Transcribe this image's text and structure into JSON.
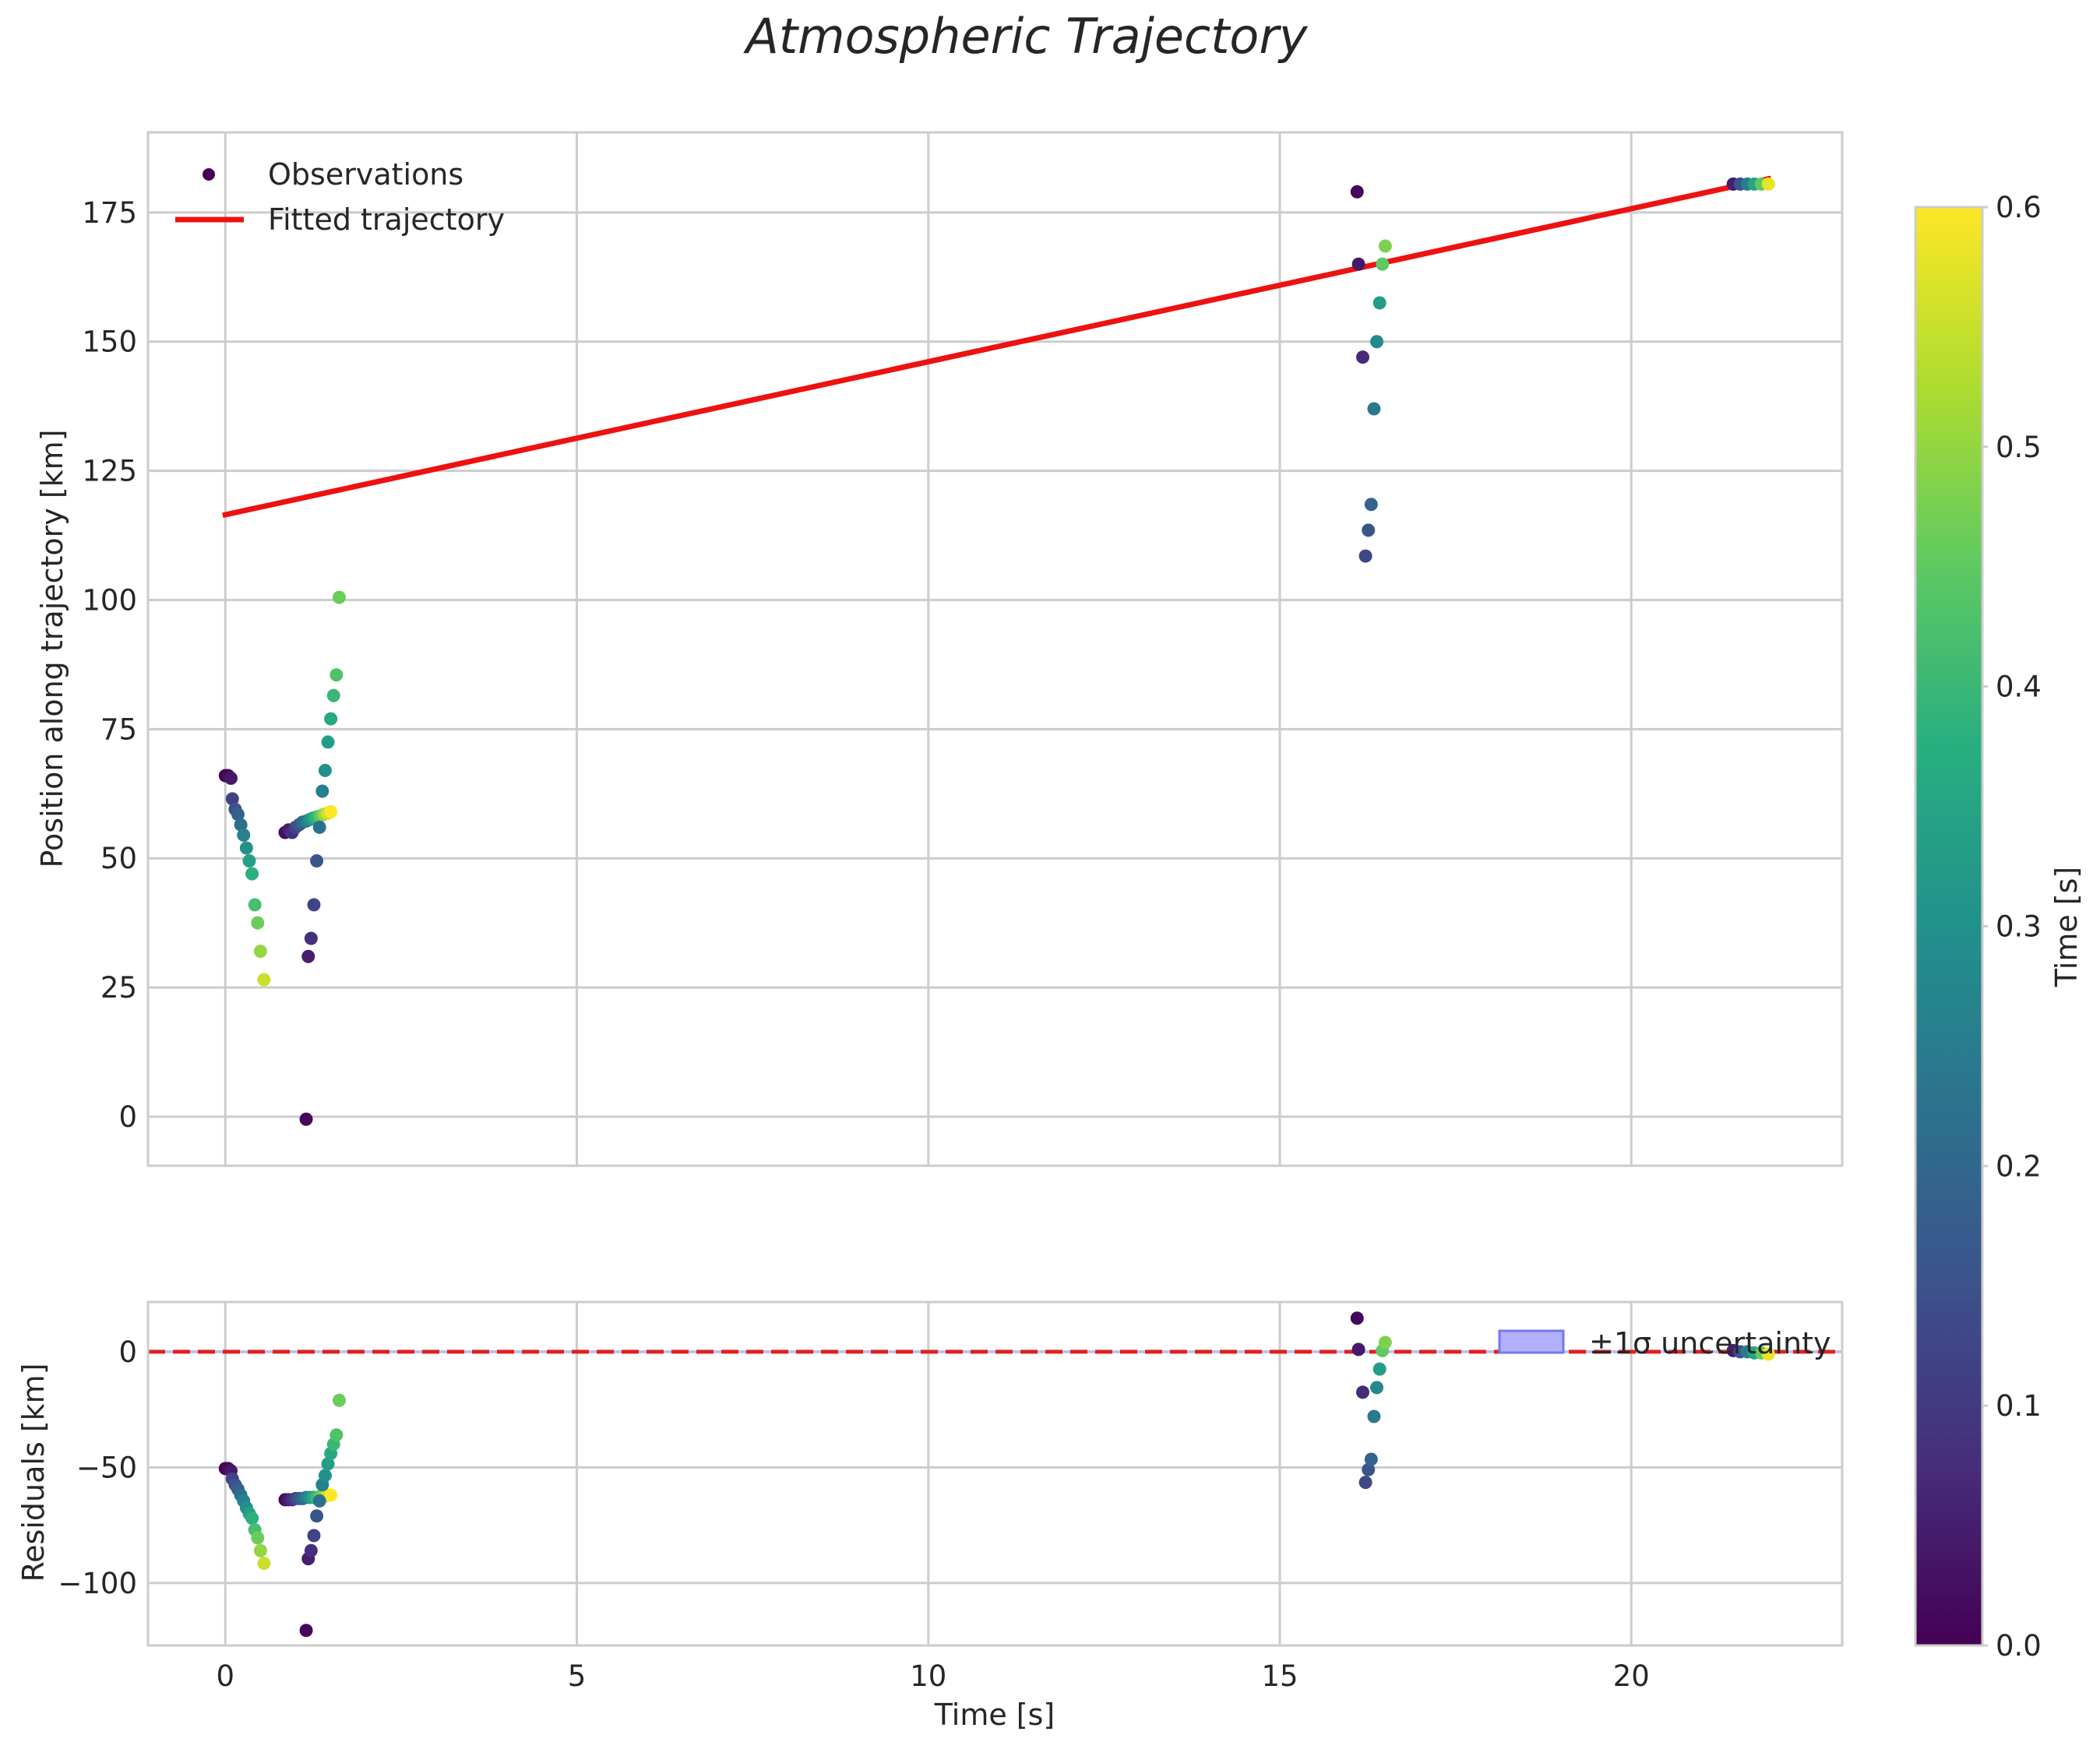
{
  "figure_title": "Atmospheric Trajectory",
  "colors": {
    "fit_line": "#ee1111",
    "zero_line": "#dd2222",
    "band_fill": "#b0b0ff",
    "band_edge": "#7777ee",
    "grid": "#cccccc",
    "viridis": [
      "#440154",
      "#472d7b",
      "#3b528b",
      "#2c728e",
      "#21918c",
      "#28ae80",
      "#5ec962",
      "#addc30",
      "#fde725"
    ]
  },
  "chart_data": [
    {
      "type": "scatter",
      "panel": "top",
      "title": "Atmospheric Trajectory",
      "xlabel": "",
      "ylabel": "Position along trajectory [km]",
      "xlim": [
        -1.1,
        23.0
      ],
      "ylim": [
        -9.5,
        190.5
      ],
      "xticks": [
        "0",
        "5",
        "10",
        "15",
        "20"
      ],
      "yticks": [
        "0",
        "25",
        "50",
        "75",
        "100",
        "125",
        "150",
        "175"
      ],
      "grid": true,
      "legend": {
        "location": "top-left",
        "entries": [
          "Observations",
          "Fitted trajectory"
        ]
      },
      "fit_line": {
        "name": "Fitted trajectory",
        "x": [
          0.0,
          21.95
        ],
        "y": [
          116.5,
          181.5
        ]
      },
      "series": [
        {
          "name": "Observations",
          "x": [
            0.0,
            0.04,
            0.08,
            0.1,
            0.14,
            0.18,
            0.22,
            0.26,
            0.3,
            0.34,
            0.38,
            0.42,
            0.46,
            0.5,
            0.55,
            0.85,
            0.9,
            0.95,
            1.0,
            1.05,
            1.1,
            1.15,
            1.2,
            1.25,
            1.3,
            1.35,
            1.4,
            1.45,
            1.5,
            1.15,
            1.18,
            1.22,
            1.26,
            1.3,
            1.34,
            1.38,
            1.42,
            1.46,
            1.5,
            1.54,
            1.58,
            1.62,
            16.1,
            16.12,
            16.18,
            16.22,
            16.26,
            16.3,
            16.34,
            16.38,
            16.42,
            16.46,
            16.5,
            21.45,
            21.55,
            21.65,
            21.75,
            21.85,
            21.95
          ],
          "y": [
            66.0,
            66.0,
            65.5,
            61.5,
            59.5,
            58.5,
            56.5,
            54.5,
            52.0,
            49.5,
            47.0,
            41.0,
            37.5,
            32.0,
            26.5,
            55.0,
            55.5,
            55.0,
            56.0,
            56.5,
            57.0,
            57.2,
            57.5,
            57.8,
            58.0,
            58.2,
            58.5,
            58.7,
            59.0,
            -0.5,
            31.0,
            34.5,
            41.0,
            49.5,
            56.0,
            63.0,
            67.0,
            72.5,
            77.0,
            81.5,
            85.5,
            100.5,
            179.0,
            165.0,
            147.0,
            108.5,
            113.5,
            118.5,
            137.0,
            150.0,
            157.5,
            165.0,
            168.5,
            180.5,
            180.5,
            180.5,
            180.5,
            180.5,
            180.5
          ],
          "time": [
            0.0,
            0.01,
            0.04,
            0.12,
            0.15,
            0.18,
            0.22,
            0.26,
            0.3,
            0.34,
            0.38,
            0.42,
            0.46,
            0.5,
            0.55,
            0.02,
            0.05,
            0.08,
            0.12,
            0.16,
            0.2,
            0.25,
            0.3,
            0.35,
            0.4,
            0.45,
            0.5,
            0.55,
            0.6,
            0.01,
            0.05,
            0.08,
            0.12,
            0.16,
            0.22,
            0.26,
            0.3,
            0.33,
            0.36,
            0.4,
            0.43,
            0.46,
            0.01,
            0.04,
            0.07,
            0.13,
            0.16,
            0.19,
            0.24,
            0.28,
            0.33,
            0.45,
            0.48,
            0.05,
            0.15,
            0.25,
            0.35,
            0.45,
            0.58
          ]
        }
      ]
    },
    {
      "type": "scatter",
      "panel": "bottom",
      "title": "",
      "xlabel": "Time [s]",
      "ylabel": "Residuals [km]",
      "xlim": [
        -1.1,
        23.0
      ],
      "ylim": [
        -127.0,
        21.5
      ],
      "xticks": [
        "0",
        "5",
        "10",
        "15",
        "20"
      ],
      "yticks": [
        "0",
        "−50",
        "−100"
      ],
      "grid": true,
      "zero_line": 0,
      "legend": {
        "location": "top-right",
        "entries": [
          "±1σ uncertainty"
        ]
      },
      "series": [
        {
          "name": "Residuals",
          "x": [
            0.0,
            0.04,
            0.08,
            0.1,
            0.14,
            0.18,
            0.22,
            0.26,
            0.3,
            0.34,
            0.38,
            0.42,
            0.46,
            0.5,
            0.55,
            0.85,
            0.9,
            0.95,
            1.0,
            1.05,
            1.1,
            1.15,
            1.2,
            1.25,
            1.3,
            1.35,
            1.4,
            1.45,
            1.5,
            1.15,
            1.18,
            1.22,
            1.26,
            1.3,
            1.34,
            1.38,
            1.42,
            1.46,
            1.5,
            1.54,
            1.58,
            1.62,
            16.1,
            16.12,
            16.18,
            16.22,
            16.26,
            16.3,
            16.34,
            16.38,
            16.42,
            16.46,
            16.5,
            21.45,
            21.55,
            21.65,
            21.75,
            21.85,
            21.95
          ],
          "y": [
            -50.5,
            -50.5,
            -51.5,
            -55.0,
            -57.5,
            -59.5,
            -62.0,
            -64.5,
            -67.5,
            -70.0,
            -72.0,
            -77.0,
            -80.5,
            -86.0,
            -91.5,
            -64.0,
            -64.0,
            -64.0,
            -63.5,
            -63.5,
            -63.5,
            -63.0,
            -63.0,
            -63.0,
            -63.0,
            -62.5,
            -62.5,
            -62.0,
            -62.0,
            -120.5,
            -89.5,
            -86.0,
            -79.5,
            -71.0,
            -64.5,
            -57.5,
            -53.5,
            -48.5,
            -44.0,
            -40.0,
            -36.0,
            -21.0,
            14.5,
            1.0,
            -17.5,
            -56.5,
            -51.0,
            -46.5,
            -28.0,
            -15.5,
            -7.5,
            0.5,
            4.0,
            0.5,
            0.0,
            0.0,
            -0.5,
            -0.5,
            -1.0
          ],
          "time": [
            0.0,
            0.01,
            0.04,
            0.12,
            0.15,
            0.18,
            0.22,
            0.26,
            0.3,
            0.34,
            0.38,
            0.42,
            0.46,
            0.5,
            0.55,
            0.02,
            0.05,
            0.08,
            0.12,
            0.16,
            0.2,
            0.25,
            0.3,
            0.35,
            0.4,
            0.45,
            0.5,
            0.55,
            0.6,
            0.01,
            0.05,
            0.08,
            0.12,
            0.16,
            0.22,
            0.26,
            0.3,
            0.33,
            0.36,
            0.4,
            0.43,
            0.46,
            0.01,
            0.04,
            0.07,
            0.13,
            0.16,
            0.19,
            0.24,
            0.28,
            0.33,
            0.45,
            0.48,
            0.05,
            0.15,
            0.25,
            0.35,
            0.45,
            0.58
          ]
        }
      ]
    }
  ],
  "colorbar": {
    "label": "Time [s]",
    "range": [
      0.0,
      0.6
    ],
    "ticks": [
      "0.0",
      "0.1",
      "0.2",
      "0.3",
      "0.4",
      "0.5",
      "0.6"
    ]
  }
}
